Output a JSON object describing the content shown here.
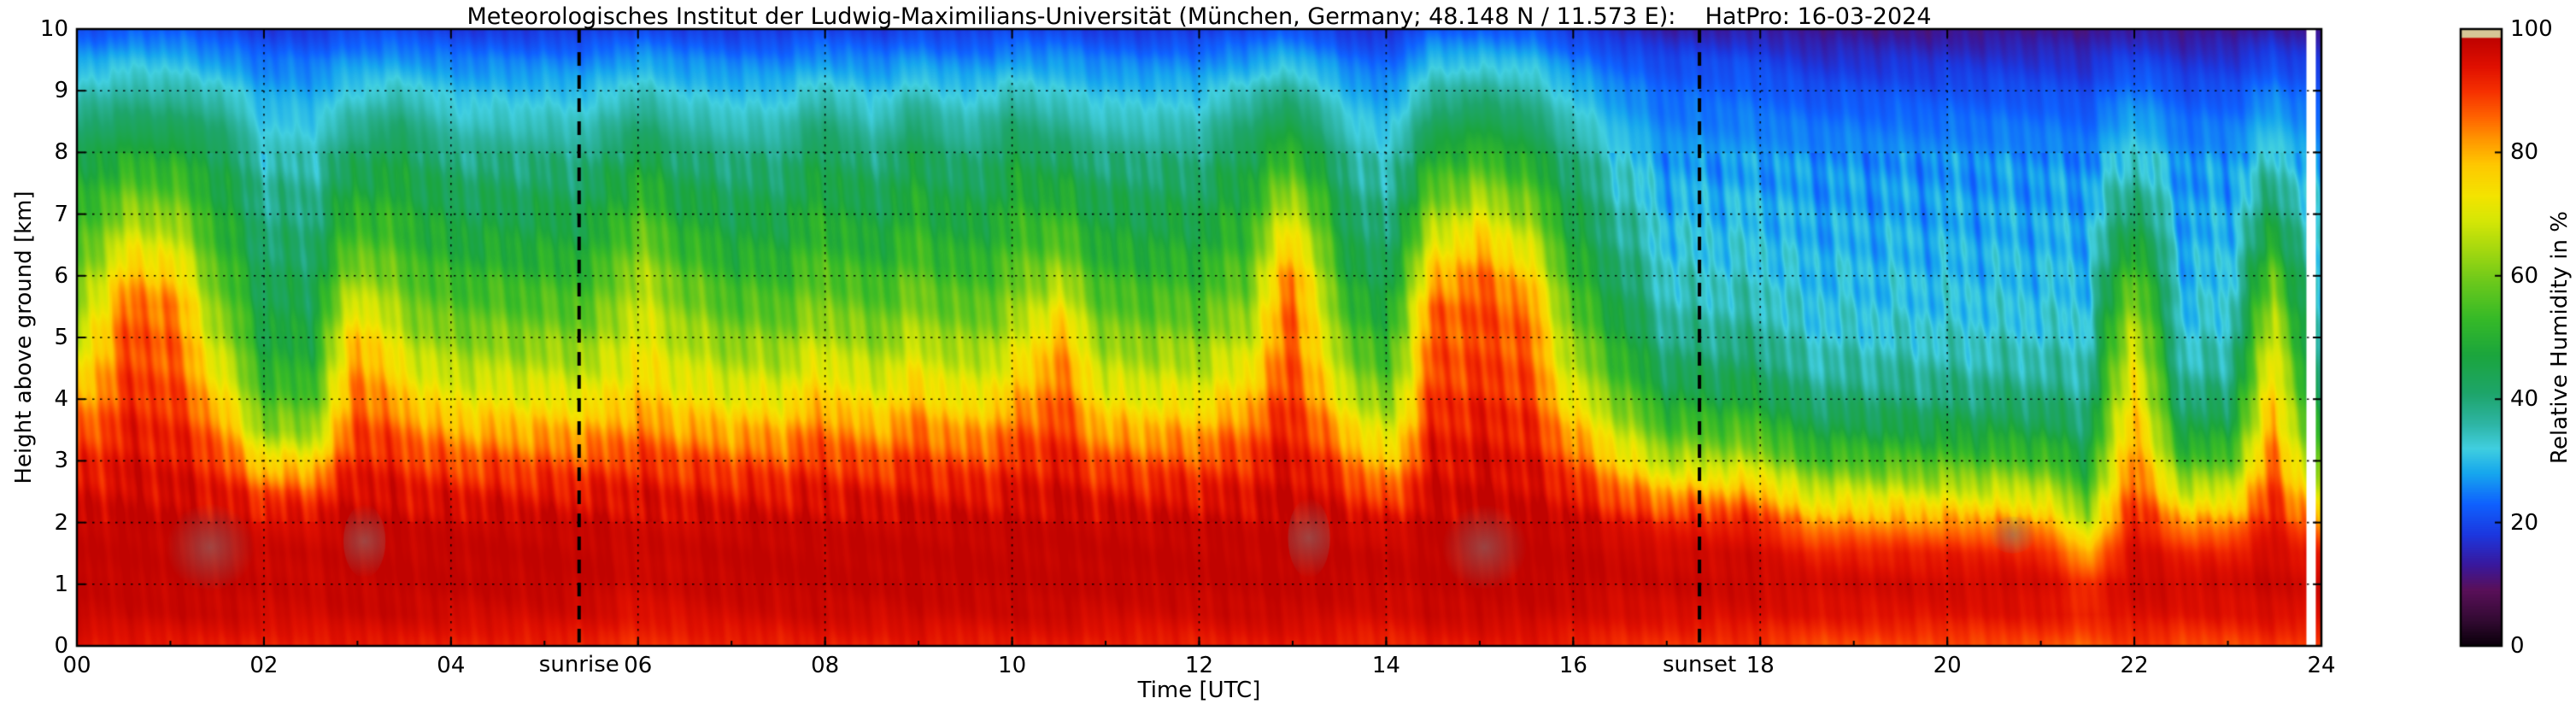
{
  "title": "Meteorologisches Institut der Ludwig-Maximilians-Universität (München, Germany; 48.148 N / 11.573 E):    HatPro: 16-03-2024",
  "axes": {
    "x_label": "Time [UTC]",
    "y_label": "Height above ground [km]",
    "x_ticks": [
      "00",
      "02",
      "04",
      "06",
      "08",
      "10",
      "12",
      "14",
      "16",
      "18",
      "20",
      "22",
      "24"
    ],
    "x_tick_values": [
      0,
      2,
      4,
      6,
      8,
      10,
      12,
      14,
      16,
      18,
      20,
      22,
      24
    ],
    "y_ticks": [
      "0",
      "1",
      "2",
      "3",
      "4",
      "5",
      "6",
      "7",
      "8",
      "9",
      "10"
    ],
    "y_tick_values": [
      0,
      1,
      2,
      3,
      4,
      5,
      6,
      7,
      8,
      9,
      10
    ],
    "x_range": [
      0,
      24
    ],
    "y_range": [
      0,
      10
    ]
  },
  "colorbar": {
    "label": "Relative Humidity in %",
    "ticks": [
      "0",
      "20",
      "40",
      "60",
      "80",
      "100"
    ],
    "tick_values": [
      0,
      20,
      40,
      60,
      80,
      100
    ],
    "range": [
      0,
      100
    ]
  },
  "annotations": {
    "sunrise": {
      "label": "sunrise",
      "time": 5.37
    },
    "sunset": {
      "label": "sunset",
      "time": 17.35
    }
  },
  "chart_data": {
    "type": "heatmap",
    "title": "HatPro relative humidity time-height cross-section, 16-03-2024",
    "xlabel": "Time [UTC]",
    "ylabel": "Height above ground [km]",
    "zlabel": "Relative Humidity in %",
    "t_range": [
      0,
      24
    ],
    "t_step": 0.5,
    "h_range": [
      0,
      10
    ],
    "h_step": 0.5,
    "values": [
      [
        93,
        97,
        98,
        98,
        97,
        94,
        90,
        85,
        78,
        72,
        66,
        61,
        57,
        53,
        50,
        47,
        44,
        40,
        34,
        27,
        20
      ],
      [
        93,
        97,
        98,
        98,
        98,
        96,
        94,
        92,
        90,
        88,
        87,
        85,
        78,
        70,
        62,
        55,
        48,
        42,
        36,
        30,
        22
      ],
      [
        93,
        97,
        98,
        98,
        98,
        96,
        94,
        92,
        90,
        88,
        87,
        85,
        78,
        70,
        62,
        55,
        48,
        42,
        36,
        30,
        22
      ],
      [
        93,
        97,
        98,
        98,
        97,
        94,
        90,
        85,
        78,
        72,
        66,
        61,
        57,
        53,
        50,
        47,
        44,
        40,
        34,
        27,
        20
      ],
      [
        92,
        96,
        97,
        97,
        95,
        88,
        75,
        62,
        55,
        50,
        47,
        45,
        43,
        41,
        39,
        37,
        34,
        31,
        28,
        24,
        18
      ],
      [
        92,
        96,
        97,
        97,
        95,
        88,
        75,
        62,
        55,
        50,
        47,
        45,
        43,
        41,
        39,
        37,
        34,
        31,
        28,
        24,
        18
      ],
      [
        93,
        97,
        98,
        98,
        98,
        96,
        93,
        90,
        87,
        84,
        80,
        72,
        64,
        57,
        52,
        47,
        42,
        37,
        32,
        27,
        20
      ],
      [
        93,
        97,
        98,
        98,
        97,
        94,
        90,
        85,
        78,
        72,
        66,
        61,
        57,
        53,
        50,
        47,
        44,
        40,
        34,
        27,
        20
      ],
      [
        92,
        96,
        98,
        98,
        97,
        93,
        87,
        80,
        72,
        66,
        61,
        56,
        52,
        48,
        45,
        42,
        38,
        34,
        30,
        25,
        18
      ],
      [
        92,
        96,
        98,
        98,
        97,
        93,
        87,
        80,
        72,
        66,
        61,
        56,
        52,
        48,
        45,
        42,
        38,
        34,
        30,
        25,
        18
      ],
      [
        92,
        96,
        98,
        98,
        97,
        93,
        87,
        80,
        72,
        66,
        61,
        56,
        52,
        48,
        45,
        42,
        38,
        34,
        30,
        25,
        18
      ],
      [
        92,
        96,
        98,
        98,
        97,
        93,
        87,
        80,
        72,
        66,
        61,
        56,
        52,
        48,
        45,
        42,
        38,
        34,
        30,
        25,
        18
      ],
      [
        90,
        94,
        96,
        97,
        96,
        94,
        90,
        84,
        78,
        74,
        71,
        68,
        65,
        60,
        55,
        50,
        45,
        40,
        34,
        28,
        20
      ],
      [
        91,
        95,
        97,
        97,
        96,
        93,
        88,
        81,
        74,
        69,
        65,
        61,
        57,
        52,
        48,
        44,
        40,
        36,
        31,
        26,
        19
      ],
      [
        92,
        96,
        98,
        98,
        97,
        93,
        87,
        80,
        72,
        66,
        61,
        56,
        52,
        48,
        45,
        42,
        38,
        34,
        30,
        25,
        18
      ],
      [
        92,
        96,
        98,
        98,
        97,
        93,
        87,
        80,
        72,
        66,
        61,
        56,
        52,
        48,
        45,
        42,
        38,
        34,
        30,
        25,
        18
      ],
      [
        93,
        97,
        98,
        98,
        97,
        94,
        90,
        85,
        78,
        72,
        66,
        61,
        57,
        53,
        50,
        47,
        44,
        40,
        34,
        27,
        20
      ],
      [
        92,
        96,
        98,
        98,
        97,
        93,
        87,
        80,
        72,
        66,
        61,
        56,
        52,
        48,
        45,
        42,
        38,
        34,
        30,
        25,
        18
      ],
      [
        93,
        97,
        98,
        98,
        97,
        94,
        90,
        85,
        78,
        72,
        66,
        61,
        57,
        53,
        50,
        47,
        44,
        40,
        34,
        27,
        20
      ],
      [
        92,
        96,
        98,
        98,
        97,
        93,
        87,
        80,
        72,
        66,
        61,
        56,
        52,
        48,
        45,
        42,
        38,
        34,
        30,
        25,
        18
      ],
      [
        93,
        97,
        98,
        98,
        97,
        94,
        90,
        85,
        78,
        72,
        66,
        61,
        57,
        53,
        50,
        47,
        44,
        40,
        34,
        27,
        20
      ],
      [
        93,
        97,
        98,
        98,
        98,
        96,
        93,
        90,
        87,
        84,
        80,
        72,
        64,
        57,
        52,
        47,
        42,
        37,
        32,
        27,
        20
      ],
      [
        92,
        96,
        98,
        98,
        97,
        93,
        87,
        80,
        72,
        66,
        61,
        56,
        52,
        48,
        45,
        42,
        38,
        34,
        30,
        25,
        18
      ],
      [
        92,
        96,
        98,
        98,
        97,
        93,
        87,
        80,
        72,
        66,
        61,
        56,
        52,
        48,
        45,
        42,
        38,
        34,
        30,
        25,
        18
      ],
      [
        92,
        96,
        98,
        98,
        97,
        93,
        87,
        80,
        72,
        66,
        61,
        56,
        52,
        48,
        45,
        42,
        38,
        34,
        30,
        25,
        18
      ],
      [
        93,
        97,
        98,
        98,
        97,
        94,
        90,
        85,
        78,
        72,
        66,
        61,
        57,
        53,
        50,
        47,
        44,
        40,
        34,
        27,
        20
      ],
      [
        93,
        97,
        98,
        98,
        98,
        97,
        95,
        93,
        91,
        89,
        88,
        88,
        85,
        78,
        70,
        60,
        52,
        45,
        38,
        30,
        22
      ],
      [
        92,
        96,
        98,
        98,
        97,
        93,
        87,
        80,
        72,
        66,
        61,
        56,
        52,
        48,
        45,
        42,
        38,
        34,
        30,
        25,
        18
      ],
      [
        91,
        95,
        97,
        97,
        94,
        86,
        76,
        67,
        59,
        53,
        49,
        45,
        42,
        39,
        37,
        34,
        32,
        29,
        26,
        22,
        16
      ],
      [
        93,
        97,
        98,
        98,
        98,
        96,
        94,
        92,
        90,
        88,
        87,
        85,
        78,
        70,
        62,
        55,
        48,
        42,
        36,
        30,
        22
      ],
      [
        93,
        97,
        98,
        98,
        98,
        97,
        95,
        93,
        91,
        89,
        88,
        88,
        85,
        78,
        70,
        60,
        52,
        45,
        38,
        30,
        22
      ],
      [
        93,
        97,
        98,
        98,
        98,
        96,
        94,
        92,
        90,
        88,
        87,
        85,
        78,
        70,
        62,
        55,
        48,
        42,
        36,
        30,
        22
      ],
      [
        92,
        96,
        98,
        98,
        97,
        93,
        87,
        80,
        72,
        66,
        61,
        56,
        52,
        48,
        45,
        42,
        38,
        34,
        30,
        25,
        18
      ],
      [
        91,
        95,
        97,
        97,
        94,
        86,
        76,
        67,
        59,
        53,
        49,
        45,
        42,
        39,
        37,
        34,
        32,
        29,
        26,
        22,
        16
      ],
      [
        90,
        95,
        97,
        96,
        92,
        80,
        65,
        55,
        47,
        42,
        38,
        35,
        33,
        31,
        30,
        28,
        27,
        25,
        23,
        20,
        14
      ],
      [
        90,
        95,
        97,
        96,
        92,
        80,
        65,
        55,
        47,
        42,
        38,
        35,
        33,
        31,
        30,
        28,
        27,
        25,
        23,
        20,
        14
      ],
      [
        90,
        95,
        97,
        96,
        92,
        80,
        65,
        55,
        47,
        42,
        38,
        35,
        33,
        31,
        30,
        28,
        27,
        25,
        23,
        20,
        14
      ],
      [
        88,
        94,
        96,
        92,
        82,
        68,
        55,
        46,
        40,
        36,
        33,
        31,
        30,
        29,
        28,
        27,
        26,
        24,
        21,
        17,
        12
      ],
      [
        88,
        94,
        96,
        92,
        82,
        68,
        55,
        46,
        40,
        36,
        33,
        31,
        30,
        29,
        28,
        27,
        26,
        24,
        21,
        17,
        12
      ],
      [
        88,
        94,
        96,
        92,
        82,
        68,
        55,
        46,
        40,
        36,
        33,
        31,
        30,
        29,
        28,
        27,
        26,
        24,
        21,
        17,
        12
      ],
      [
        88,
        94,
        96,
        92,
        82,
        68,
        55,
        46,
        40,
        36,
        33,
        31,
        30,
        29,
        28,
        27,
        26,
        24,
        21,
        17,
        12
      ],
      [
        88,
        94,
        96,
        92,
        82,
        68,
        55,
        46,
        40,
        36,
        33,
        31,
        30,
        29,
        28,
        27,
        26,
        24,
        21,
        17,
        12
      ],
      [
        88,
        94,
        96,
        92,
        82,
        68,
        55,
        46,
        40,
        36,
        33,
        31,
        30,
        29,
        28,
        27,
        26,
        24,
        21,
        17,
        12
      ],
      [
        86,
        92,
        90,
        80,
        66,
        55,
        47,
        42,
        38,
        35,
        33,
        31,
        30,
        29,
        28,
        27,
        25,
        23,
        20,
        16,
        12
      ],
      [
        90,
        95,
        97,
        96,
        94,
        90,
        86,
        82,
        78,
        74,
        70,
        64,
        58,
        50,
        44,
        38,
        33,
        29,
        25,
        20,
        14
      ],
      [
        88,
        94,
        96,
        92,
        82,
        68,
        55,
        46,
        40,
        36,
        33,
        31,
        30,
        29,
        28,
        27,
        26,
        24,
        21,
        17,
        12
      ],
      [
        88,
        94,
        96,
        92,
        82,
        68,
        55,
        46,
        40,
        36,
        33,
        31,
        30,
        29,
        28,
        27,
        26,
        24,
        21,
        17,
        12
      ],
      [
        90,
        95,
        97,
        96,
        94,
        90,
        86,
        82,
        78,
        74,
        70,
        64,
        58,
        50,
        44,
        38,
        33,
        29,
        25,
        20,
        14
      ],
      [
        88,
        94,
        96,
        92,
        82,
        68,
        55,
        46,
        40,
        36,
        33,
        31,
        30,
        29,
        28,
        27,
        26,
        24,
        21,
        17,
        12
      ]
    ],
    "colormap_stops": [
      [
        0,
        "#0a000a"
      ],
      [
        4,
        "#320a32"
      ],
      [
        9,
        "#5a105a"
      ],
      [
        13,
        "#3a189c"
      ],
      [
        18,
        "#1c38e0"
      ],
      [
        23,
        "#0f62ff"
      ],
      [
        28,
        "#17a8ee"
      ],
      [
        32,
        "#41cfe0"
      ],
      [
        36,
        "#2eb5a4"
      ],
      [
        41,
        "#1ea56a"
      ],
      [
        47,
        "#1ba53e"
      ],
      [
        53,
        "#36ba28"
      ],
      [
        59,
        "#6cc91c"
      ],
      [
        64,
        "#a3d810"
      ],
      [
        69,
        "#d7e706"
      ],
      [
        73,
        "#f4e400"
      ],
      [
        78,
        "#ffc900"
      ],
      [
        82,
        "#ff9800"
      ],
      [
        86,
        "#ff6000"
      ],
      [
        90,
        "#f63000"
      ],
      [
        94,
        "#e01000"
      ],
      [
        98.5,
        "#c00300"
      ],
      [
        98.8,
        "#d6c594"
      ],
      [
        100,
        "#d8c79a"
      ]
    ],
    "missing_intervals": [
      [
        23.84,
        23.94
      ]
    ],
    "gray_patches": [
      [
        0.95,
        1.9,
        0.9,
        2.3
      ],
      [
        2.85,
        3.3,
        1.1,
        2.3
      ],
      [
        12.95,
        13.4,
        1.1,
        2.4
      ],
      [
        14.6,
        15.5,
        0.9,
        2.3
      ],
      [
        20.45,
        20.95,
        1.5,
        2.1
      ]
    ]
  }
}
